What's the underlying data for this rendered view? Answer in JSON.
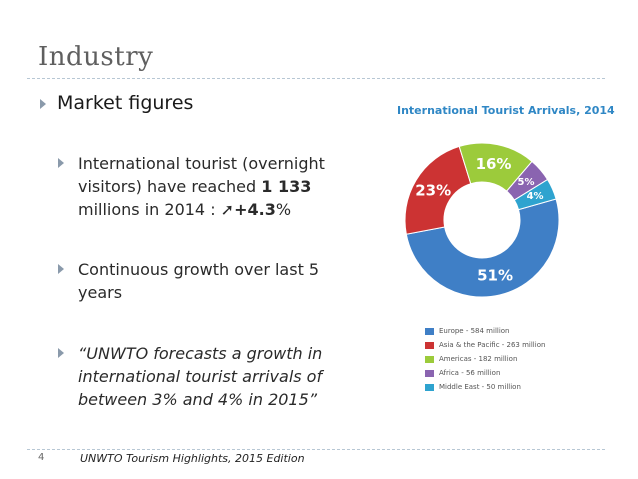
{
  "slide": {
    "title": "Industry",
    "heading": "Market figures",
    "bullets": [
      {
        "text": "International tourist (overnight visitors) have reached ",
        "bold": "1 133",
        "rest": " millions in 2014 : ",
        "arrow": "➚",
        "bold2": "+4.3",
        "suffix": "%"
      },
      {
        "text": "Continuous growth over last 5 years"
      },
      {
        "text": "“UNWTO forecasts a growth in international tourist arrivals of between 3% and 4% in 2015”"
      }
    ],
    "page_number": "4",
    "footer": "UNWTO Tourism Highlights, 2015 Edition"
  },
  "chart_data": {
    "type": "pie",
    "title": "International Tourist Arrivals, 2014",
    "categories": [
      "Europe",
      "Asia & the Pacific",
      "Americas",
      "Africa",
      "Middle East"
    ],
    "values": [
      584,
      263,
      182,
      56,
      50
    ],
    "units": "million",
    "slice_labels": [
      "51%",
      "23%",
      "16%",
      "5%",
      "4%"
    ],
    "legend": [
      "Europe - 584 million",
      "Asia & the Pacific - 263 million",
      "Americas - 182 million",
      "Africa - 56 million",
      "Middle East - 50 million"
    ],
    "colors": [
      "#3f7fc6",
      "#cc3333",
      "#9ccb3b",
      "#8a64b0",
      "#2ea3cf"
    ]
  }
}
